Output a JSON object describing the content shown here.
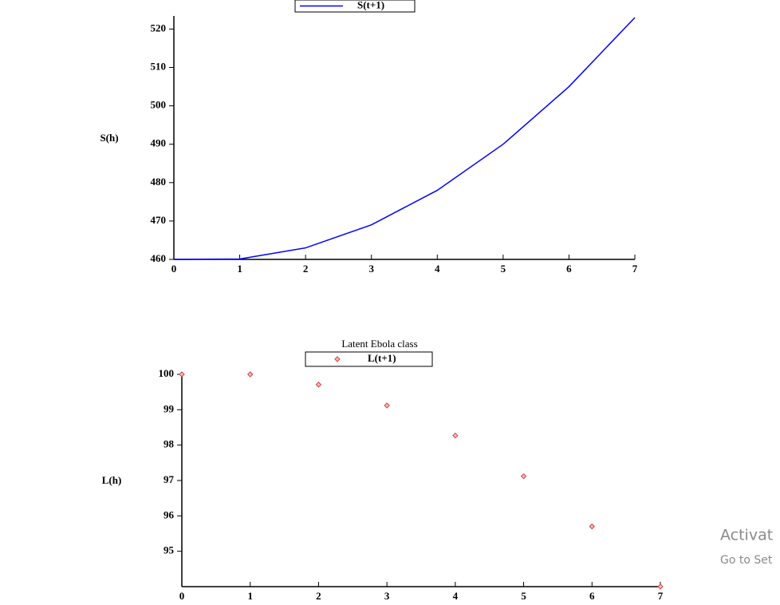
{
  "chart_data": [
    {
      "type": "line",
      "y_label": "S(h)",
      "x": [
        0,
        1,
        2,
        3,
        4,
        5,
        6,
        7
      ],
      "series": [
        {
          "name": "S(t+1)",
          "color": "#0000ff",
          "values": [
            460,
            460.1,
            463,
            469,
            478,
            490,
            505,
            523
          ]
        }
      ],
      "xlim": [
        0,
        7
      ],
      "xticks": [
        0,
        1,
        2,
        3,
        4,
        5,
        6,
        7
      ],
      "ylim": [
        460,
        523
      ],
      "yticks": [
        460,
        470,
        480,
        490,
        500,
        510,
        520
      ]
    },
    {
      "type": "scatter",
      "title": "Latent Ebola class",
      "y_label": "L(h)",
      "x": [
        0,
        1,
        2,
        3,
        4,
        5,
        6,
        7
      ],
      "series": [
        {
          "name": "L(t+1)",
          "color": "#d04040",
          "values": [
            100,
            100,
            99.71,
            99.12,
            98.27,
            97.12,
            95.7,
            94
          ]
        }
      ],
      "xlim": [
        0,
        7
      ],
      "xticks": [
        0,
        1,
        2,
        3,
        4,
        5,
        6,
        7
      ],
      "ylim": [
        94,
        100
      ],
      "yticks": [
        95,
        96,
        97,
        98,
        99,
        100
      ]
    }
  ],
  "watermark": {
    "line1": "Activat",
    "line2": "Go to Set"
  }
}
